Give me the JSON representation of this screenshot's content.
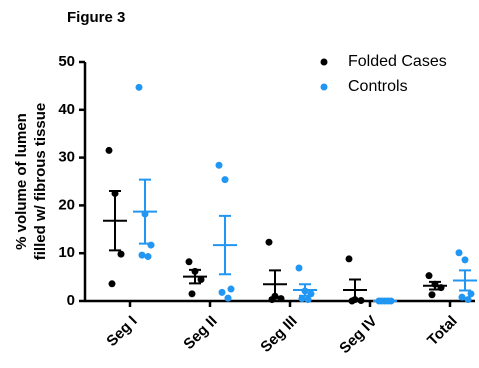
{
  "chart_data": {
    "type": "dot",
    "title": "Figure 3",
    "y_label": [
      "% volume of lumen",
      "filled w/ fibrous tissue"
    ],
    "categories": [
      "Seg I",
      "Seg II",
      "Seg III",
      "Seg IV",
      "Total"
    ],
    "ylim": [
      0,
      50
    ],
    "yticks": [
      0,
      10,
      20,
      30,
      40,
      50
    ],
    "legend": "top-right",
    "series": [
      {
        "name": "Folded Cases",
        "color": "#000000",
        "values": [
          [
            31.5,
            22.5,
            9.8,
            3.6
          ],
          [
            8.2,
            6.2,
            4.5,
            1.5
          ],
          [
            12.3,
            1.0,
            0.5,
            0.3
          ],
          [
            8.8,
            0.3,
            0.1,
            0
          ],
          [
            5.3,
            3.5,
            2.8,
            1.3
          ]
        ],
        "mean": [
          16.8,
          5.1,
          3.5,
          2.3,
          3.2
        ],
        "sem": [
          6.2,
          1.4,
          2.9,
          2.2,
          0.8
        ]
      },
      {
        "name": "Controls",
        "color": "#2196f3",
        "values": [
          [
            44.7,
            18.2,
            11.7,
            9.6,
            9.3
          ],
          [
            28.4,
            25.4,
            2.5,
            1.8,
            0.6
          ],
          [
            6.9,
            2.1,
            1.5,
            0.5,
            0.3
          ],
          [
            0,
            0,
            0,
            0,
            0
          ],
          [
            10.1,
            8.6,
            1.5,
            0.8,
            0.3
          ]
        ],
        "mean": [
          18.7,
          11.7,
          2.3,
          0,
          4.3
        ],
        "sem": [
          6.7,
          6.1,
          1.2,
          0,
          2.1
        ]
      }
    ]
  }
}
